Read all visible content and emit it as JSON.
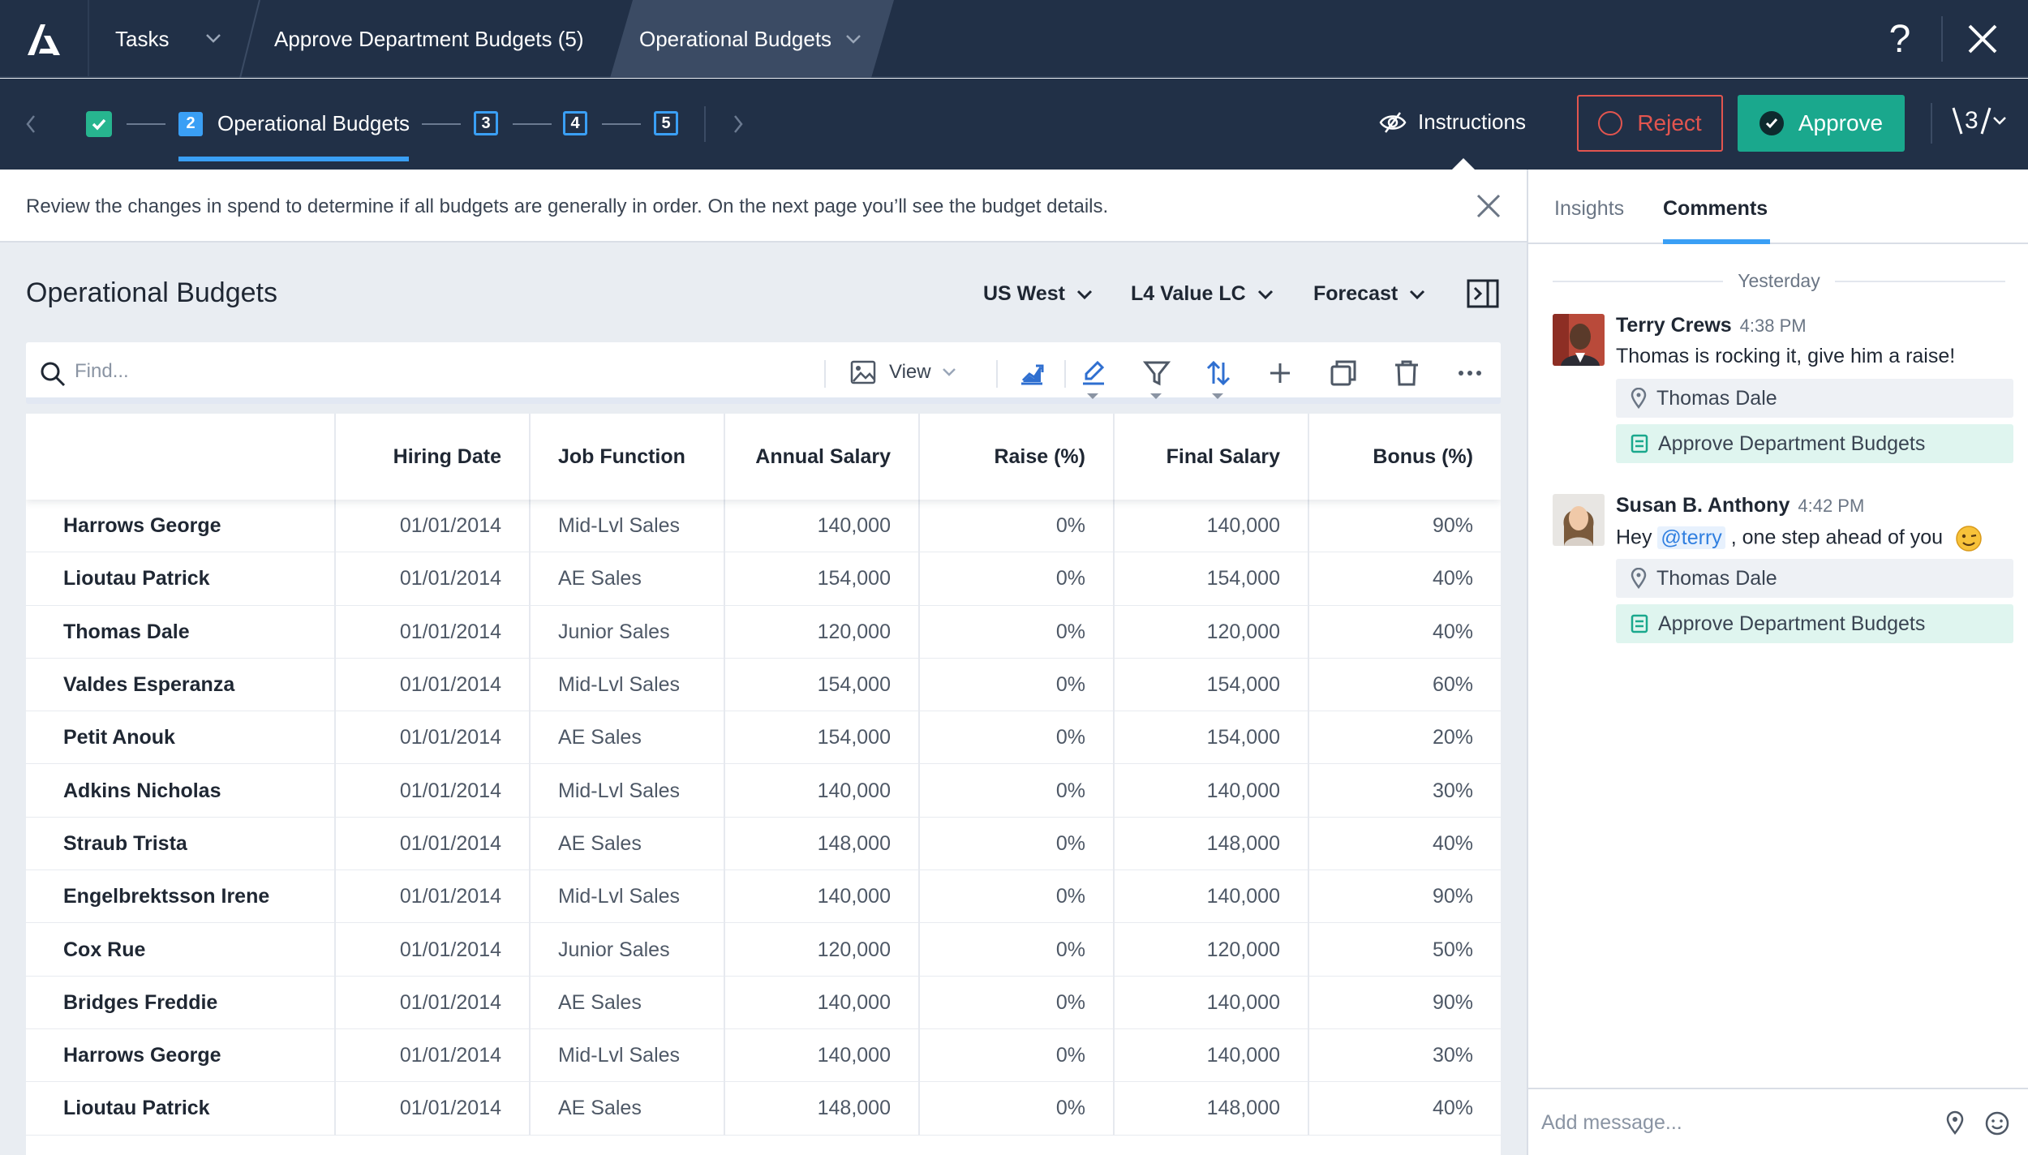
{
  "topbar": {
    "crumbs": {
      "tasks": "Tasks",
      "approve": "Approve Department Budgets (5)",
      "operational": "Operational Budgets"
    },
    "help_glyph": "?",
    "icons": [
      "logo-icon",
      "chevron-down-icon",
      "help-icon",
      "close-icon"
    ]
  },
  "steps": {
    "current_number": "2",
    "current_label": "Operational Budgets",
    "step3": "3",
    "step4": "4",
    "step5": "5",
    "instructions_label": "Instructions",
    "reject_label": "Reject",
    "approve_label": "Approve",
    "counter_value": "3"
  },
  "banner": {
    "text": "Review the changes in spend to determine if all budgets are generally in order. On the next page you’ll see the budget details."
  },
  "panel": {
    "title": "Operational Budgets",
    "filters": {
      "region": "US West",
      "value": "L4 Value LC",
      "scenario": "Forecast"
    },
    "toolbar": {
      "search_placeholder": "Find...",
      "view_label": "View"
    }
  },
  "table": {
    "columns": [
      "",
      "Hiring Date",
      "Job Function",
      "Annual Salary",
      "Raise (%)",
      "Final Salary",
      "Bonus (%)"
    ],
    "rows": [
      [
        "Harrows George",
        "01/01/2014",
        "Mid-Lvl Sales",
        "140,000",
        "0%",
        "140,000",
        "90%"
      ],
      [
        "Lioutau Patrick",
        "01/01/2014",
        "AE Sales",
        "154,000",
        "0%",
        "154,000",
        "40%"
      ],
      [
        "Thomas Dale",
        "01/01/2014",
        "Junior Sales",
        "120,000",
        "0%",
        "120,000",
        "40%"
      ],
      [
        "Valdes Esperanza",
        "01/01/2014",
        "Mid-Lvl Sales",
        "154,000",
        "0%",
        "154,000",
        "60%"
      ],
      [
        "Petit Anouk",
        "01/01/2014",
        "AE Sales",
        "154,000",
        "0%",
        "154,000",
        "20%"
      ],
      [
        "Adkins Nicholas",
        "01/01/2014",
        "Mid-Lvl Sales",
        "140,000",
        "0%",
        "140,000",
        "30%"
      ],
      [
        "Straub Trista",
        "01/01/2014",
        "AE Sales",
        "148,000",
        "0%",
        "148,000",
        "40%"
      ],
      [
        "Engelbrektsson Irene",
        "01/01/2014",
        "Mid-Lvl Sales",
        "140,000",
        "0%",
        "140,000",
        "90%"
      ],
      [
        "Cox Rue",
        "01/01/2014",
        "Junior Sales",
        "120,000",
        "0%",
        "120,000",
        "50%"
      ],
      [
        "Bridges Freddie",
        "01/01/2014",
        "AE Sales",
        "140,000",
        "0%",
        "140,000",
        "90%"
      ],
      [
        "Harrows George",
        "01/01/2014",
        "Mid-Lvl Sales",
        "140,000",
        "0%",
        "140,000",
        "30%"
      ],
      [
        "Lioutau Patrick",
        "01/01/2014",
        "AE Sales",
        "148,000",
        "0%",
        "148,000",
        "40%"
      ]
    ]
  },
  "sidebar": {
    "tabs": {
      "insights": "Insights",
      "comments": "Comments"
    },
    "day_label": "Yesterday",
    "comments": [
      {
        "author": "Terry Crews",
        "time": "4:38 PM",
        "text": "Thomas is rocking it, give him a raise!",
        "location": "Thomas Dale",
        "task": "Approve Department Budgets"
      },
      {
        "author": "Susan B. Anthony",
        "time": "4:42 PM",
        "text_before": "Hey ",
        "mention": "@terry",
        "text_after": " , one step ahead of you",
        "location": "Thomas Dale",
        "task": "Approve Department Budgets"
      }
    ],
    "composer_placeholder": "Add message..."
  },
  "colors": {
    "nav_bg": "#213047",
    "accent_blue": "#3a9ff5",
    "approve_green": "#1aa88d",
    "reject_red": "#e2554f",
    "step_done_green": "#27b58f"
  }
}
